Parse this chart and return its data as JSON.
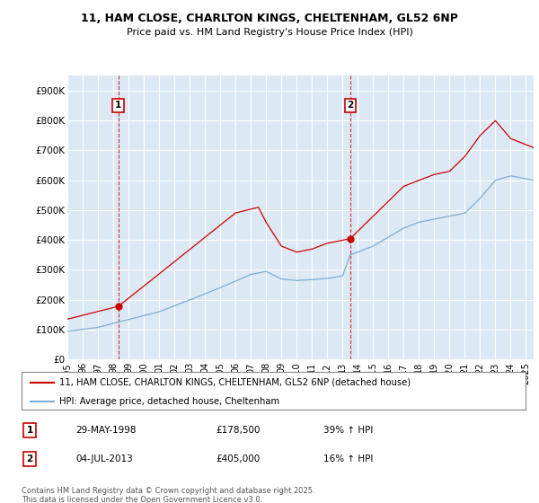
{
  "title_line1": "11, HAM CLOSE, CHARLTON KINGS, CHELTENHAM, GL52 6NP",
  "title_line2": "Price paid vs. HM Land Registry's House Price Index (HPI)",
  "background_color": "#ffffff",
  "plot_bg_color": "#dce9f5",
  "grid_color": "#ffffff",
  "sale1_date_label": "29-MAY-1998",
  "sale1_price": 178500,
  "sale1_hpi": "39% ↑ HPI",
  "sale2_date_label": "04-JUL-2013",
  "sale2_price": 405000,
  "sale2_hpi": "16% ↑ HPI",
  "legend_line1": "11, HAM CLOSE, CHARLTON KINGS, CHELTENHAM, GL52 6NP (detached house)",
  "legend_line2": "HPI: Average price, detached house, Cheltenham",
  "footer": "Contains HM Land Registry data © Crown copyright and database right 2025.\nThis data is licensed under the Open Government Licence v3.0.",
  "red_color": "#cc0000",
  "blue_color": "#7aaed4",
  "ylim_max": 950000,
  "yticks": [
    0,
    100000,
    200000,
    300000,
    400000,
    500000,
    600000,
    700000,
    800000,
    900000
  ],
  "ytick_labels": [
    "£0",
    "£100K",
    "£200K",
    "£300K",
    "£400K",
    "£500K",
    "£600K",
    "£700K",
    "£800K",
    "£900K"
  ],
  "xstart": 1995.0,
  "xend": 2025.5,
  "xticks": [
    1995,
    1996,
    1997,
    1998,
    1999,
    2000,
    2001,
    2002,
    2003,
    2004,
    2005,
    2006,
    2007,
    2008,
    2009,
    2010,
    2011,
    2012,
    2013,
    2014,
    2015,
    2016,
    2017,
    2018,
    2019,
    2020,
    2021,
    2022,
    2023,
    2024,
    2025
  ],
  "start_year": 1995,
  "n_months": 367
}
